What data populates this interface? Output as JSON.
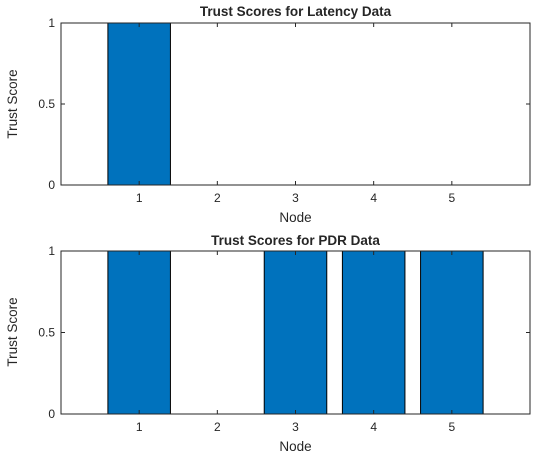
{
  "chart_data": [
    {
      "type": "bar",
      "title": "Trust Scores for Latency Data",
      "xlabel": "Node",
      "ylabel": "Trust Score",
      "categories": [
        1,
        2,
        3,
        4,
        5
      ],
      "values": [
        1,
        0,
        0,
        0,
        0
      ],
      "xlim": [
        0,
        6
      ],
      "ylim": [
        0,
        1
      ],
      "yticks": [
        0,
        0.5,
        1
      ],
      "bar_color": "#0072BD",
      "grid": false
    },
    {
      "type": "bar",
      "title": "Trust Scores for PDR Data",
      "xlabel": "Node",
      "ylabel": "Trust Score",
      "categories": [
        1,
        2,
        3,
        4,
        5
      ],
      "values": [
        1,
        0,
        1,
        1,
        1
      ],
      "xlim": [
        0,
        6
      ],
      "ylim": [
        0,
        1
      ],
      "yticks": [
        0,
        0.5,
        1
      ],
      "bar_color": "#0072BD",
      "grid": false
    }
  ]
}
